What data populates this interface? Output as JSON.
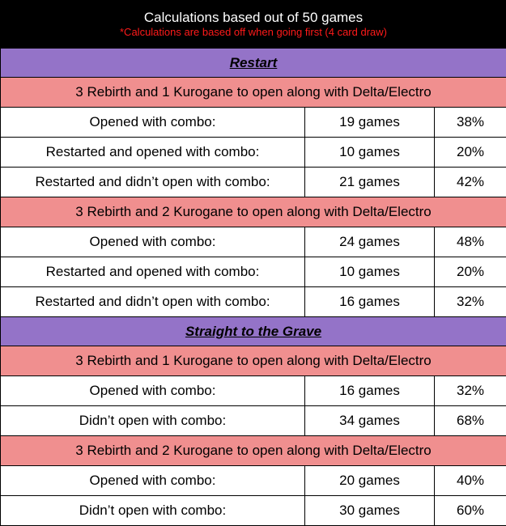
{
  "header": {
    "title": "Calculations based out of 50 games",
    "note": "*Calculations are based off when going first (4 card draw)"
  },
  "sections": [
    {
      "title": "Restart",
      "scenarios": [
        {
          "title": "3 Rebirth and 1 Kurogane to open along with Delta/Electro",
          "rows": [
            {
              "label": "Opened with combo:",
              "games": "19 games",
              "pct": "38%"
            },
            {
              "label": "Restarted and opened with combo:",
              "games": "10 games",
              "pct": "20%"
            },
            {
              "label": "Restarted and didn’t open with combo:",
              "games": "21 games",
              "pct": "42%"
            }
          ]
        },
        {
          "title": "3 Rebirth and 2 Kurogane to open along with Delta/Electro",
          "rows": [
            {
              "label": "Opened with combo:",
              "games": "24 games",
              "pct": "48%"
            },
            {
              "label": "Restarted and opened with combo:",
              "games": "10 games",
              "pct": "20%"
            },
            {
              "label": "Restarted and didn’t open with combo:",
              "games": "16 games",
              "pct": "32%"
            }
          ]
        }
      ]
    },
    {
      "title": "Straight to the Grave",
      "scenarios": [
        {
          "title": "3 Rebirth and 1 Kurogane to open along with Delta/Electro",
          "rows": [
            {
              "label": "Opened with combo:",
              "games": "16 games",
              "pct": "32%"
            },
            {
              "label": "Didn’t open with combo:",
              "games": "34 games",
              "pct": "68%"
            }
          ]
        },
        {
          "title": "3 Rebirth and 2 Kurogane to open along with Delta/Electro",
          "rows": [
            {
              "label": "Opened with combo:",
              "games": "20 games",
              "pct": "40%"
            },
            {
              "label": "Didn’t open with combo:",
              "games": "30 games",
              "pct": "60%"
            }
          ]
        }
      ]
    }
  ]
}
